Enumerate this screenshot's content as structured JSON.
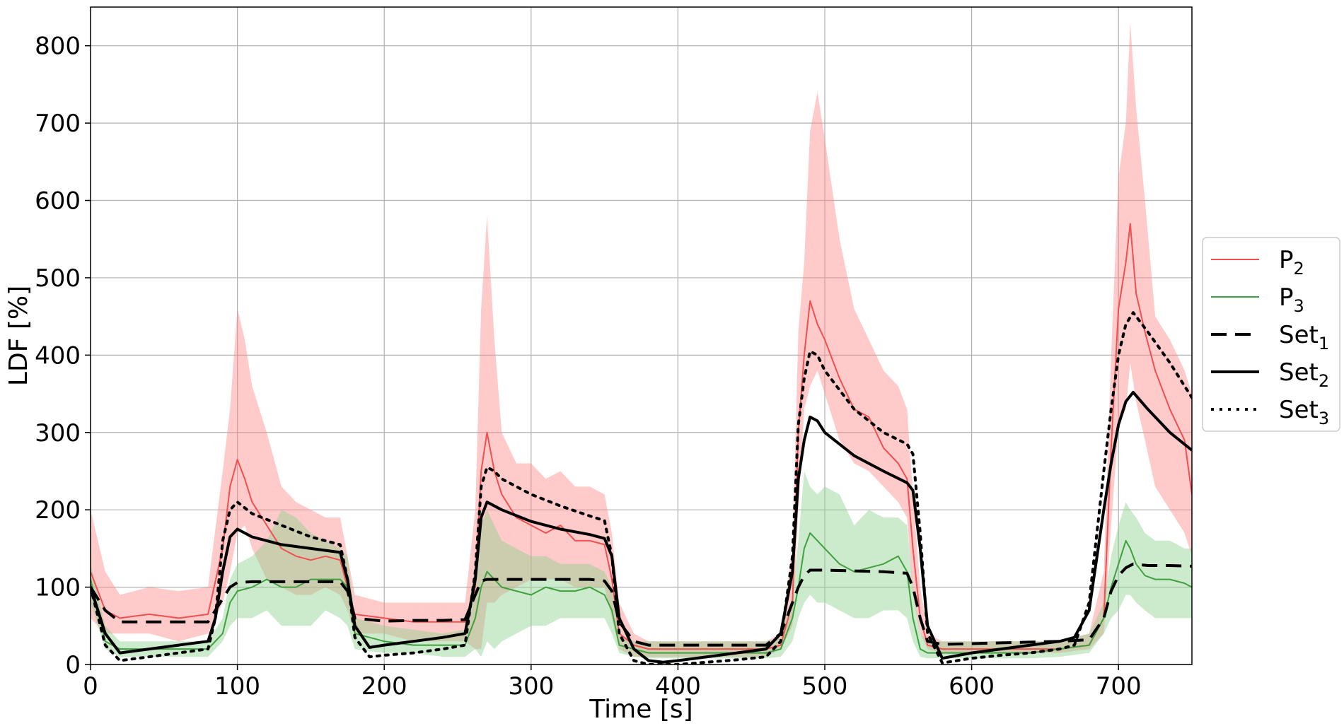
{
  "chart_data": {
    "type": "line",
    "title": "",
    "xlabel": "Time [s]",
    "ylabel": "LDF [%]",
    "xlim": [
      0,
      750
    ],
    "ylim": [
      0,
      850
    ],
    "xticks": [
      0,
      100,
      200,
      300,
      400,
      500,
      600,
      700
    ],
    "yticks": [
      0,
      100,
      200,
      300,
      400,
      500,
      600,
      700,
      800
    ],
    "grid": true,
    "legend_position": "right-outside",
    "bands": [
      {
        "series": "P2",
        "color": "#ff8a8a",
        "x": [
          0,
          10,
          20,
          40,
          60,
          80,
          90,
          95,
          100,
          105,
          110,
          120,
          130,
          140,
          150,
          160,
          170,
          175,
          180,
          200,
          220,
          240,
          255,
          262,
          266,
          270,
          275,
          280,
          290,
          300,
          310,
          320,
          330,
          340,
          350,
          355,
          360,
          370,
          380,
          400,
          420,
          440,
          460,
          470,
          478,
          482,
          486,
          490,
          495,
          500,
          510,
          520,
          530,
          540,
          550,
          556,
          560,
          565,
          570,
          580,
          600,
          620,
          640,
          660,
          680,
          690,
          695,
          700,
          705,
          708,
          712,
          718,
          725,
          735,
          745,
          750
        ],
        "upper": [
          200,
          120,
          90,
          100,
          95,
          100,
          250,
          330,
          460,
          420,
          360,
          300,
          230,
          210,
          200,
          190,
          190,
          140,
          90,
          80,
          80,
          80,
          80,
          200,
          460,
          580,
          420,
          300,
          260,
          260,
          240,
          250,
          230,
          230,
          220,
          170,
          80,
          40,
          30,
          30,
          30,
          30,
          30,
          40,
          150,
          430,
          520,
          690,
          740,
          680,
          550,
          460,
          420,
          380,
          360,
          330,
          220,
          100,
          40,
          30,
          30,
          30,
          30,
          30,
          40,
          120,
          400,
          630,
          700,
          830,
          720,
          600,
          450,
          420,
          380,
          350
        ],
        "lower": [
          60,
          40,
          40,
          40,
          30,
          40,
          80,
          120,
          170,
          180,
          150,
          110,
          100,
          90,
          90,
          100,
          90,
          70,
          40,
          40,
          30,
          30,
          30,
          20,
          20,
          80,
          80,
          90,
          100,
          110,
          110,
          110,
          100,
          100,
          100,
          60,
          20,
          10,
          10,
          10,
          10,
          10,
          10,
          20,
          50,
          200,
          330,
          360,
          380,
          350,
          290,
          260,
          250,
          230,
          210,
          190,
          90,
          40,
          20,
          15,
          15,
          15,
          15,
          15,
          20,
          40,
          180,
          310,
          330,
          390,
          340,
          290,
          230,
          200,
          170,
          140
        ]
      },
      {
        "series": "P3",
        "color": "#8fd18f",
        "x": [
          0,
          10,
          20,
          40,
          60,
          80,
          90,
          95,
          100,
          110,
          120,
          130,
          140,
          150,
          160,
          170,
          175,
          180,
          200,
          220,
          240,
          255,
          262,
          266,
          270,
          275,
          280,
          290,
          300,
          310,
          320,
          330,
          340,
          350,
          355,
          360,
          370,
          380,
          400,
          420,
          440,
          460,
          470,
          478,
          482,
          486,
          490,
          495,
          500,
          510,
          520,
          530,
          540,
          550,
          556,
          560,
          565,
          570,
          580,
          600,
          620,
          640,
          660,
          680,
          690,
          695,
          700,
          705,
          708,
          712,
          718,
          725,
          735,
          745,
          750
        ],
        "upper": [
          130,
          50,
          30,
          30,
          30,
          30,
          60,
          110,
          130,
          140,
          160,
          200,
          190,
          170,
          160,
          150,
          140,
          60,
          50,
          45,
          40,
          45,
          130,
          180,
          200,
          180,
          160,
          150,
          140,
          140,
          130,
          130,
          130,
          120,
          100,
          40,
          30,
          30,
          30,
          30,
          30,
          30,
          35,
          90,
          160,
          250,
          230,
          220,
          230,
          220,
          180,
          200,
          190,
          190,
          180,
          100,
          40,
          30,
          30,
          30,
          30,
          30,
          30,
          40,
          80,
          140,
          180,
          210,
          200,
          190,
          170,
          160,
          160,
          150,
          150
        ],
        "lower": [
          80,
          20,
          10,
          10,
          10,
          10,
          30,
          50,
          60,
          60,
          70,
          50,
          50,
          50,
          70,
          60,
          50,
          20,
          15,
          15,
          10,
          10,
          20,
          10,
          30,
          20,
          30,
          40,
          50,
          50,
          60,
          60,
          60,
          60,
          40,
          15,
          10,
          8,
          8,
          8,
          8,
          8,
          10,
          30,
          60,
          80,
          90,
          80,
          80,
          70,
          60,
          60,
          70,
          70,
          60,
          30,
          10,
          8,
          8,
          8,
          8,
          8,
          10,
          15,
          40,
          60,
          70,
          90,
          90,
          80,
          70,
          60,
          60,
          60,
          60
        ]
      }
    ],
    "series": [
      {
        "name": "P2",
        "color": "#f05050",
        "width": 2,
        "dash": "",
        "x": [
          0,
          10,
          20,
          40,
          60,
          80,
          90,
          95,
          100,
          105,
          110,
          120,
          130,
          140,
          150,
          160,
          170,
          175,
          180,
          200,
          220,
          240,
          255,
          262,
          266,
          270,
          275,
          280,
          290,
          300,
          310,
          320,
          330,
          340,
          350,
          355,
          360,
          370,
          380,
          400,
          420,
          440,
          460,
          470,
          478,
          482,
          486,
          490,
          495,
          500,
          510,
          520,
          530,
          540,
          550,
          556,
          560,
          565,
          570,
          580,
          600,
          620,
          640,
          660,
          680,
          690,
          695,
          700,
          705,
          708,
          712,
          718,
          725,
          735,
          745,
          750
        ],
        "y": [
          120,
          70,
          60,
          65,
          60,
          65,
          150,
          230,
          265,
          240,
          210,
          180,
          150,
          140,
          135,
          140,
          135,
          100,
          65,
          60,
          55,
          55,
          55,
          100,
          250,
          300,
          250,
          220,
          190,
          180,
          170,
          180,
          160,
          160,
          155,
          110,
          40,
          25,
          20,
          20,
          20,
          20,
          20,
          25,
          80,
          300,
          400,
          470,
          440,
          420,
          370,
          330,
          320,
          280,
          260,
          240,
          150,
          60,
          25,
          20,
          20,
          20,
          20,
          20,
          25,
          60,
          280,
          460,
          520,
          570,
          480,
          430,
          380,
          330,
          290,
          220
        ]
      },
      {
        "name": "P3",
        "color": "#40a040",
        "width": 2,
        "dash": "",
        "x": [
          0,
          10,
          20,
          40,
          60,
          80,
          90,
          95,
          100,
          110,
          120,
          130,
          140,
          150,
          160,
          170,
          175,
          180,
          200,
          220,
          240,
          255,
          262,
          266,
          270,
          275,
          280,
          290,
          300,
          310,
          320,
          330,
          340,
          350,
          355,
          360,
          370,
          380,
          400,
          420,
          440,
          460,
          470,
          478,
          482,
          486,
          490,
          495,
          500,
          510,
          520,
          530,
          540,
          550,
          556,
          560,
          565,
          570,
          580,
          600,
          620,
          640,
          660,
          680,
          690,
          695,
          700,
          705,
          708,
          712,
          718,
          725,
          735,
          745,
          750
        ],
        "y": [
          110,
          30,
          20,
          20,
          20,
          20,
          40,
          80,
          95,
          100,
          110,
          100,
          100,
          110,
          110,
          110,
          100,
          40,
          30,
          25,
          25,
          25,
          60,
          100,
          120,
          110,
          100,
          95,
          90,
          100,
          95,
          95,
          100,
          90,
          70,
          25,
          20,
          15,
          15,
          15,
          15,
          15,
          20,
          60,
          100,
          150,
          170,
          160,
          150,
          130,
          120,
          125,
          130,
          140,
          120,
          60,
          20,
          15,
          15,
          15,
          15,
          15,
          20,
          25,
          60,
          100,
          130,
          160,
          150,
          130,
          115,
          110,
          110,
          105,
          100
        ]
      },
      {
        "name": "Set1",
        "color": "#000000",
        "width": 4,
        "dash": "22,12",
        "x": [
          0,
          10,
          20,
          40,
          60,
          80,
          90,
          95,
          100,
          110,
          130,
          150,
          170,
          175,
          180,
          200,
          220,
          240,
          255,
          262,
          266,
          270,
          275,
          280,
          300,
          320,
          340,
          350,
          355,
          360,
          370,
          380,
          400,
          420,
          440,
          460,
          470,
          478,
          482,
          486,
          490,
          495,
          500,
          520,
          540,
          556,
          560,
          565,
          570,
          580,
          600,
          620,
          640,
          660,
          680,
          690,
          695,
          700,
          705,
          710,
          720,
          735,
          750
        ],
        "y": [
          100,
          70,
          55,
          55,
          55,
          55,
          85,
          100,
          106,
          107,
          107,
          107,
          107,
          95,
          60,
          56,
          57,
          57,
          58,
          90,
          108,
          110,
          110,
          110,
          110,
          110,
          110,
          108,
          95,
          55,
          30,
          25,
          25,
          25,
          25,
          25,
          40,
          80,
          100,
          115,
          122,
          122,
          122,
          121,
          120,
          118,
          100,
          60,
          30,
          26,
          27,
          28,
          29,
          30,
          32,
          60,
          95,
          115,
          125,
          130,
          128,
          128,
          127
        ]
      },
      {
        "name": "Set2",
        "color": "#000000",
        "width": 4,
        "dash": "",
        "x": [
          0,
          10,
          20,
          40,
          60,
          80,
          85,
          90,
          95,
          100,
          110,
          130,
          150,
          170,
          175,
          180,
          190,
          200,
          220,
          240,
          255,
          262,
          266,
          270,
          275,
          280,
          300,
          320,
          340,
          350,
          355,
          360,
          370,
          380,
          390,
          400,
          420,
          440,
          460,
          470,
          478,
          482,
          486,
          490,
          495,
          500,
          520,
          540,
          556,
          560,
          565,
          570,
          580,
          600,
          620,
          640,
          660,
          670,
          680,
          690,
          695,
          700,
          705,
          710,
          720,
          735,
          750
        ],
        "y": [
          100,
          40,
          15,
          20,
          25,
          30,
          60,
          120,
          165,
          175,
          165,
          155,
          150,
          145,
          110,
          50,
          22,
          25,
          30,
          35,
          40,
          110,
          190,
          210,
          205,
          200,
          185,
          175,
          168,
          163,
          140,
          60,
          20,
          5,
          3,
          5,
          10,
          15,
          20,
          40,
          120,
          240,
          290,
          320,
          315,
          300,
          270,
          250,
          235,
          225,
          150,
          50,
          8,
          15,
          20,
          25,
          30,
          35,
          70,
          200,
          260,
          310,
          340,
          352,
          330,
          300,
          277
        ]
      },
      {
        "name": "Set3",
        "color": "#000000",
        "width": 4,
        "dash": "4,8",
        "x": [
          0,
          10,
          20,
          40,
          60,
          80,
          85,
          90,
          95,
          100,
          110,
          130,
          150,
          170,
          175,
          180,
          190,
          200,
          220,
          240,
          255,
          262,
          266,
          270,
          275,
          280,
          300,
          320,
          340,
          350,
          355,
          360,
          370,
          380,
          390,
          400,
          420,
          440,
          460,
          470,
          478,
          482,
          486,
          490,
          495,
          500,
          520,
          540,
          556,
          560,
          565,
          570,
          580,
          600,
          620,
          640,
          660,
          670,
          680,
          690,
          695,
          700,
          705,
          710,
          720,
          735,
          750
        ],
        "y": [
          100,
          25,
          5,
          10,
          15,
          20,
          60,
          160,
          200,
          210,
          195,
          180,
          165,
          155,
          110,
          35,
          10,
          12,
          15,
          20,
          25,
          120,
          230,
          255,
          250,
          240,
          220,
          205,
          192,
          186,
          140,
          40,
          5,
          0,
          0,
          0,
          3,
          6,
          10,
          30,
          140,
          310,
          370,
          405,
          400,
          380,
          330,
          300,
          285,
          272,
          170,
          40,
          2,
          8,
          12,
          15,
          20,
          25,
          80,
          250,
          330,
          400,
          440,
          455,
          430,
          390,
          345
        ]
      }
    ],
    "legend": [
      {
        "series": "P2",
        "label": "P",
        "sub": "2"
      },
      {
        "series": "P3",
        "label": "P",
        "sub": "3"
      },
      {
        "series": "Set1",
        "label": "Set",
        "sub": "1"
      },
      {
        "series": "Set2",
        "label": "Set",
        "sub": "2"
      },
      {
        "series": "Set3",
        "label": "Set",
        "sub": "3"
      }
    ]
  }
}
